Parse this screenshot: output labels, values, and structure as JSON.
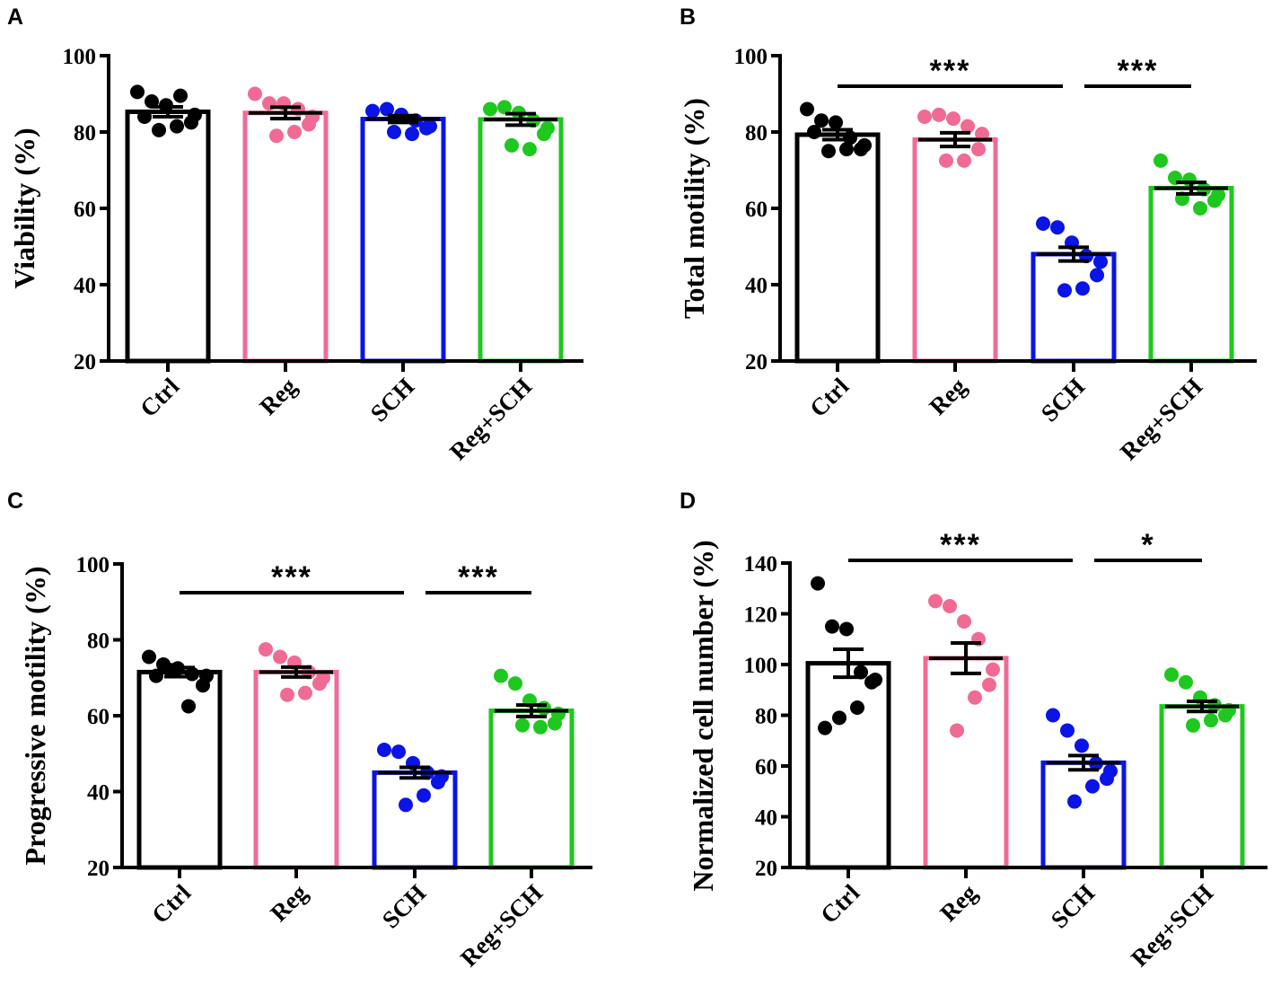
{
  "chart_data": [
    {
      "type": "bar",
      "panel": "A",
      "ylabel": "Viability (%)",
      "xlabel": "",
      "ylim": [
        20,
        100
      ],
      "yticks": [
        20,
        40,
        60,
        80,
        100
      ],
      "categories": [
        "Ctrl",
        "Reg",
        "SCH",
        "Reg+SCH"
      ],
      "colors": [
        "#000000",
        "#f06b94",
        "#0a14e6",
        "#1ec81e"
      ],
      "values": [
        85.3,
        85.0,
        83.4,
        83.3
      ],
      "sem": [
        1.3,
        1.5,
        0.9,
        1.5
      ],
      "points": [
        [
          90.5,
          88.0,
          87.0,
          89.5,
          84.5,
          82.5,
          81.5,
          80.5,
          84.0
        ],
        [
          90.0,
          87.5,
          87.5,
          86.0,
          84.0,
          82.0,
          80.0,
          79.0
        ],
        [
          85.5,
          86.0,
          84.5,
          83.0,
          81.5,
          81.0,
          79.5,
          80.0
        ],
        [
          86.0,
          86.5,
          85.0,
          83.0,
          81.0,
          79.5,
          75.5,
          76.5
        ]
      ],
      "significance": []
    },
    {
      "type": "bar",
      "panel": "B",
      "ylabel": "Total motility (%)",
      "xlabel": "",
      "ylim": [
        20,
        100
      ],
      "yticks": [
        20,
        40,
        60,
        80,
        100
      ],
      "categories": [
        "Ctrl",
        "Reg",
        "SCH",
        "Reg+SCH"
      ],
      "colors": [
        "#000000",
        "#f06b94",
        "#0a14e6",
        "#1ec81e"
      ],
      "values": [
        79.3,
        78.0,
        48.0,
        65.3
      ],
      "sem": [
        1.3,
        1.8,
        1.8,
        1.5
      ],
      "points": [
        [
          86.0,
          83.0,
          82.5,
          78.5,
          76.5,
          75.5,
          75.5,
          75.0,
          80.0
        ],
        [
          84.0,
          84.5,
          83.5,
          81.5,
          79.5,
          75.5,
          72.5,
          72.5
        ],
        [
          56.0,
          55.0,
          51.0,
          47.5,
          46.0,
          42.5,
          39.0,
          38.5
        ],
        [
          72.5,
          68.0,
          67.5,
          65.0,
          63.5,
          62.0,
          60.0,
          62.5
        ]
      ],
      "significance": [
        {
          "from": 0,
          "to": 2,
          "label": "***"
        },
        {
          "from": 2,
          "to": 3,
          "label": "***"
        }
      ]
    },
    {
      "type": "bar",
      "panel": "C",
      "ylabel": "Progressive motility (%)",
      "xlabel": "",
      "ylim": [
        20,
        100
      ],
      "yticks": [
        20,
        40,
        60,
        80,
        100
      ],
      "categories": [
        "Ctrl",
        "Reg",
        "SCH",
        "Reg+SCH"
      ],
      "colors": [
        "#000000",
        "#f06b94",
        "#0a14e6",
        "#1ec81e"
      ],
      "values": [
        71.5,
        71.5,
        45.0,
        61.3
      ],
      "sem": [
        1.2,
        1.3,
        1.4,
        1.5
      ],
      "points": [
        [
          75.5,
          73.5,
          72.5,
          71.0,
          70.5,
          68.0,
          62.5,
          72.0,
          70.5
        ],
        [
          77.5,
          75.5,
          74.0,
          71.5,
          70.0,
          68.5,
          66.0,
          65.5
        ],
        [
          51.0,
          50.5,
          47.5,
          45.0,
          44.0,
          42.5,
          39.0,
          36.5
        ],
        [
          70.5,
          68.5,
          64.0,
          62.0,
          60.5,
          58.0,
          57.0,
          57.5
        ]
      ],
      "significance": [
        {
          "from": 0,
          "to": 2,
          "label": "***"
        },
        {
          "from": 2,
          "to": 3,
          "label": "***"
        }
      ]
    },
    {
      "type": "bar",
      "panel": "D",
      "ylabel": "Normalized cell number (%)",
      "xlabel": "",
      "ylim": [
        20,
        140
      ],
      "yticks": [
        20,
        40,
        60,
        80,
        100,
        120,
        140
      ],
      "categories": [
        "Ctrl",
        "Reg",
        "SCH",
        "Reg+SCH"
      ],
      "colors": [
        "#000000",
        "#f06b94",
        "#0a14e6",
        "#1ec81e"
      ],
      "values": [
        100.5,
        102.5,
        61.3,
        83.5
      ],
      "sem": [
        5.5,
        6.0,
        2.8,
        2.0
      ],
      "points": [
        [
          132.0,
          115.0,
          114.0,
          97.0,
          94.0,
          93.0,
          83.0,
          79.0,
          75.0
        ],
        [
          125.0,
          123.0,
          117.0,
          110.0,
          98.0,
          92.0,
          87.0,
          74.0
        ],
        [
          80.0,
          74.0,
          68.0,
          61.0,
          58.0,
          55.0,
          52.0,
          46.0
        ],
        [
          96.0,
          93.0,
          87.0,
          84.0,
          82.0,
          80.0,
          78.0,
          76.0
        ]
      ],
      "significance": [
        {
          "from": 0,
          "to": 2,
          "label": "***"
        },
        {
          "from": 2,
          "to": 3,
          "label": "*"
        }
      ]
    }
  ]
}
